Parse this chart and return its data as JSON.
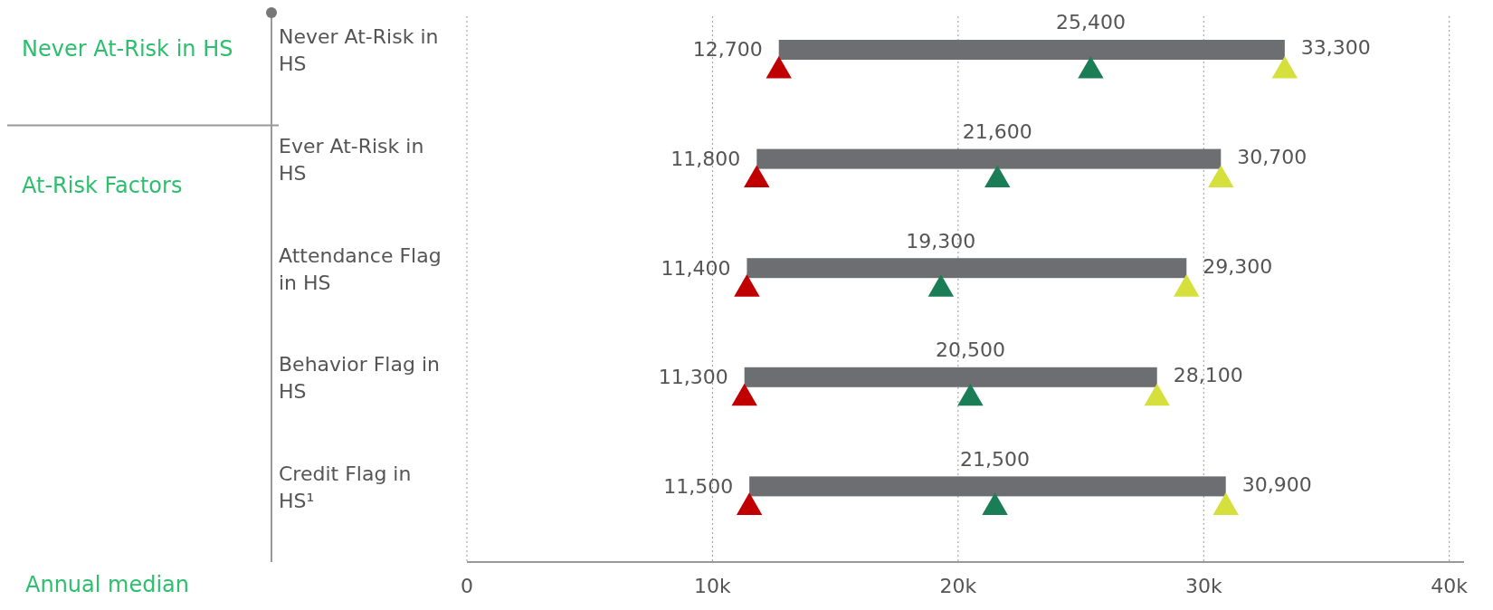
{
  "chart_data": {
    "type": "bar",
    "orientation": "horizontal",
    "xlabel": "Annual median",
    "categories": [
      "Never At-Risk in HS",
      "Ever At-Risk in HS",
      "Attendance Flag in HS",
      "Behavior Flag in HS",
      "Credit Flag in HS¹"
    ],
    "annotations": [
      "Never At-Risk in HS",
      "At-Risk Factors"
    ],
    "series": [
      {
        "type": "bar",
        "color": "#6d6e71",
        "base": [
          12700,
          11800,
          11400,
          11300,
          11500
        ],
        "values": [
          20600,
          18900,
          17900,
          16800,
          19400
        ]
      },
      {
        "type": "scatter",
        "color": "#c00000",
        "values": [
          12700,
          11800,
          11400,
          11300,
          11500
        ],
        "value_labels": [
          "12,700",
          "11,800",
          "11,400",
          "11,300",
          "11,500"
        ]
      },
      {
        "type": "scatter",
        "color": "#1b7d55",
        "values": [
          25400,
          21600,
          19300,
          20500,
          21500
        ],
        "value_labels": [
          "25,400",
          "21,600",
          "19,300",
          "20,500",
          "21,500"
        ]
      },
      {
        "type": "scatter",
        "color": "#d6e03c",
        "values": [
          33300,
          30700,
          29300,
          28100,
          30900
        ],
        "value_labels": [
          "33,300",
          "30,700",
          "29,300",
          "28,100",
          "30,900"
        ]
      }
    ],
    "xlim": [
      0,
      40600
    ],
    "xticks": [
      0,
      {
        "value": 10000,
        "label": "10k"
      },
      {
        "value": 20000,
        "label": "20k"
      },
      {
        "value": 30000,
        "label": "30k"
      },
      {
        "value": 40000,
        "label": "40k"
      }
    ],
    "grid": "x",
    "marker": "triangle"
  }
}
